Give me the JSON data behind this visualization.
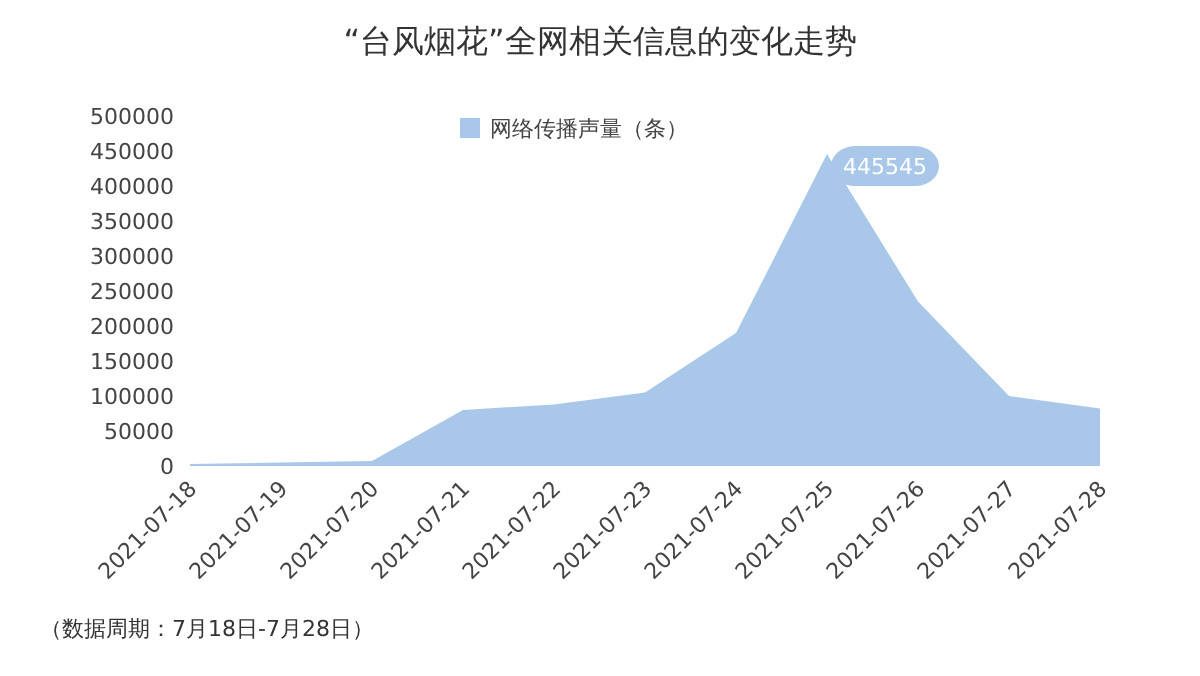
{
  "chart_data": {
    "type": "area",
    "title": "“台风烟花”全网相关信息的变化走势",
    "categories": [
      "2021-07-18",
      "2021-07-19",
      "2021-07-20",
      "2021-07-21",
      "2021-07-22",
      "2021-07-23",
      "2021-07-24",
      "2021-07-25",
      "2021-07-26",
      "2021-07-27",
      "2021-07-28"
    ],
    "series": [
      {
        "name": "网络传播声量（条）",
        "color": "#a9c7e9",
        "values": [
          3000,
          5000,
          7000,
          80000,
          88000,
          105000,
          190000,
          445545,
          235000,
          100000,
          82000
        ],
        "value_labels": [
          null,
          null,
          null,
          null,
          null,
          null,
          null,
          "445545",
          null,
          null,
          null
        ]
      }
    ],
    "ylim": [
      0,
      500000
    ],
    "yticks": [
      0,
      50000,
      100000,
      150000,
      200000,
      250000,
      300000,
      350000,
      400000,
      450000,
      500000
    ],
    "legend": "top",
    "grid": false,
    "annotations": [
      "（数据周期：7月18日-7月28日）"
    ]
  }
}
